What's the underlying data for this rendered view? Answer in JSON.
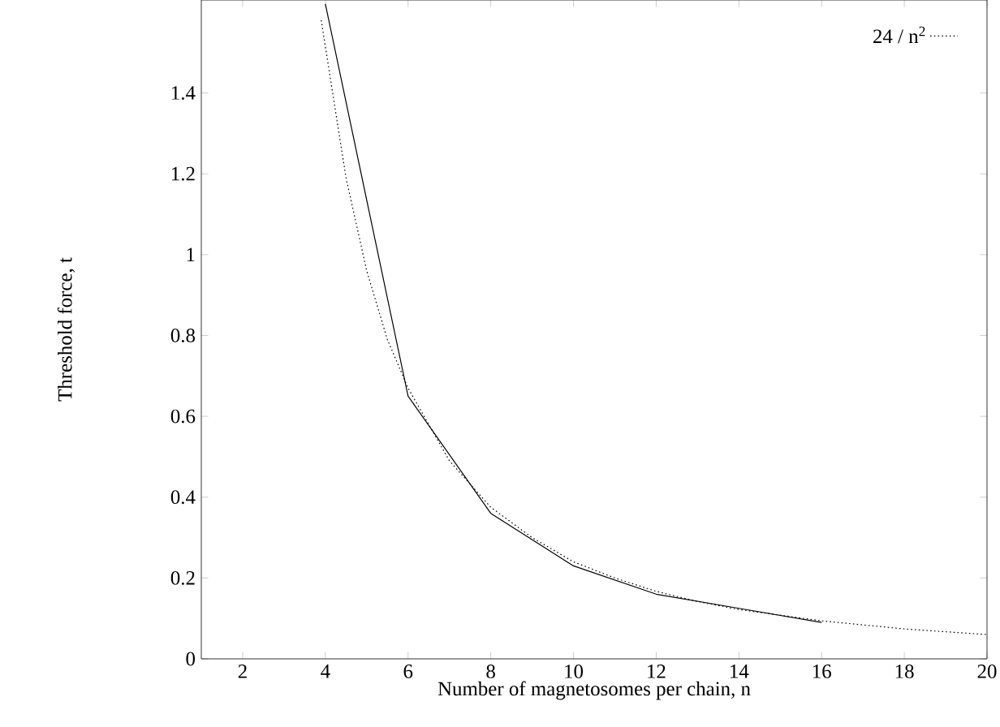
{
  "chart_data": {
    "type": "line",
    "xlabel": "Number of magnetosomes per chain, n",
    "ylabel": "Threshold force, t",
    "xlim": [
      1,
      20
    ],
    "ylim": [
      0,
      1.63
    ],
    "xticks": [
      2,
      4,
      6,
      8,
      10,
      12,
      14,
      16,
      18,
      20
    ],
    "yticks": [
      0,
      0.2,
      0.4,
      0.6,
      0.8,
      1,
      1.2,
      1.4
    ],
    "legend": "top right",
    "grid": false,
    "marker": "none",
    "series": [
      {
        "color": "#000000",
        "line_style": "solid",
        "x": [
          4,
          6,
          8,
          10,
          12,
          14,
          16
        ],
        "values": [
          1.62,
          0.65,
          0.36,
          0.23,
          0.16,
          0.125,
          0.09
        ]
      },
      {
        "name": "24 / n$^{2}$",
        "color": "#000000",
        "line_style": "dotted",
        "x": [
          3.9,
          4.5,
          5,
          5.5,
          6,
          7,
          8,
          9,
          10,
          11,
          12,
          13,
          14,
          16,
          18,
          20
        ],
        "values": [
          1.58,
          1.19,
          0.96,
          0.79,
          0.67,
          0.49,
          0.375,
          0.3,
          0.24,
          0.2,
          0.167,
          0.142,
          0.122,
          0.094,
          0.074,
          0.06
        ]
      }
    ]
  }
}
